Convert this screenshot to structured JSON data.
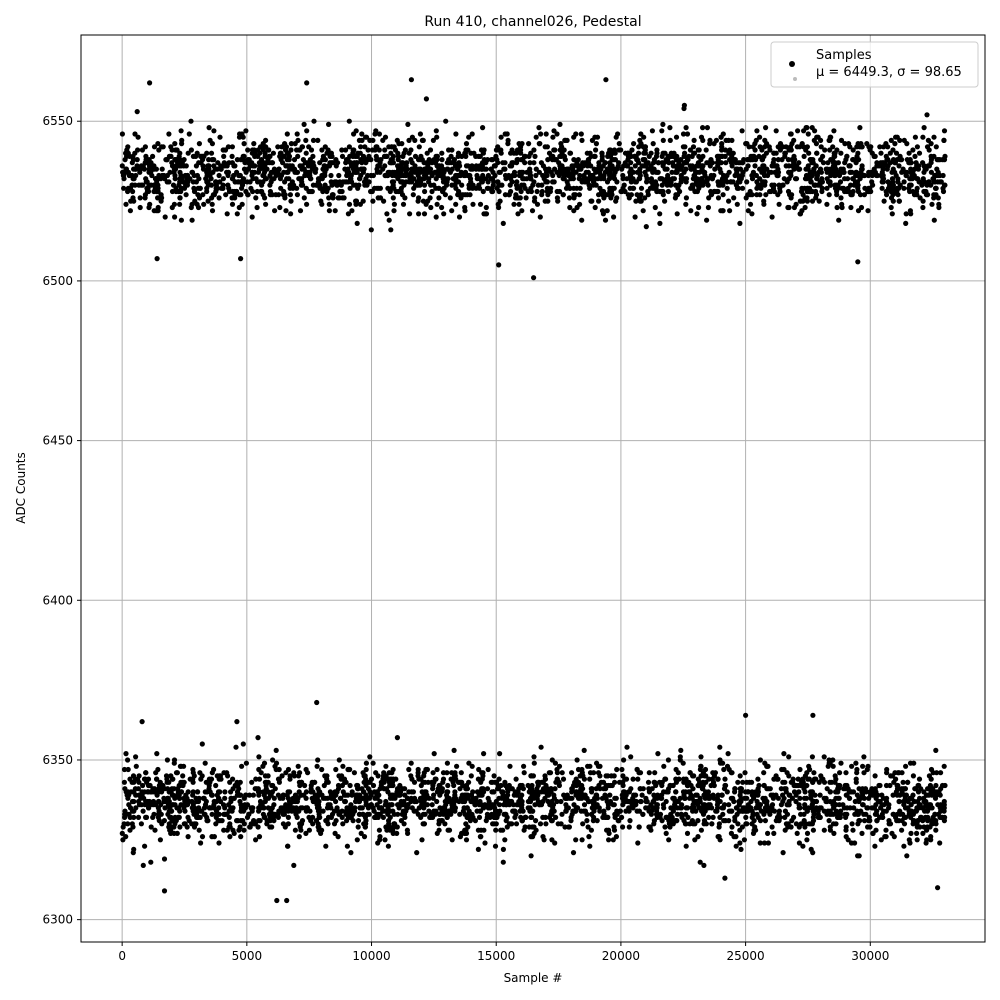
{
  "chart_data": {
    "type": "scatter",
    "title": "Run 410, channel026, Pedestal",
    "xlabel": "Sample #",
    "ylabel": "ADC Counts",
    "xlim": [
      -1650,
      34600
    ],
    "ylim": [
      6293,
      6577
    ],
    "xticks": [
      0,
      5000,
      10000,
      15000,
      20000,
      25000,
      30000
    ],
    "yticks": [
      6300,
      6350,
      6400,
      6450,
      6500,
      6550
    ],
    "xtick_labels": [
      "0",
      "5000",
      "10000",
      "15000",
      "20000",
      "25000",
      "30000"
    ],
    "ytick_labels": [
      "6300",
      "6350",
      "6400",
      "6450",
      "6500",
      "6550"
    ],
    "grid": true,
    "legend_position": "top-right",
    "marker_color": "#000000",
    "legend": {
      "title": "Samples",
      "entry": "μ = 6449.3, σ = 98.65"
    },
    "series": [
      {
        "name": "Samples",
        "sample_count": 33000,
        "x_range": [
          0,
          33000
        ],
        "bands": [
          {
            "center": 6534,
            "spread_core": 6,
            "range": [
              6501,
              6563
            ]
          },
          {
            "center": 6337,
            "spread_core": 6,
            "range": [
              6306,
              6368
            ]
          }
        ],
        "outliers": [
          {
            "x": 16500,
            "y": 6501
          },
          {
            "x": 15100,
            "y": 6505
          },
          {
            "x": 4750,
            "y": 6507
          },
          {
            "x": 1400,
            "y": 6507
          },
          {
            "x": 29500,
            "y": 6506
          },
          {
            "x": 11600,
            "y": 6563
          },
          {
            "x": 19400,
            "y": 6563
          },
          {
            "x": 1100,
            "y": 6562
          },
          {
            "x": 7400,
            "y": 6562
          },
          {
            "x": 7800,
            "y": 6368
          },
          {
            "x": 6200,
            "y": 6306
          },
          {
            "x": 6600,
            "y": 6306
          },
          {
            "x": 1700,
            "y": 6309
          },
          {
            "x": 32700,
            "y": 6310
          },
          {
            "x": 25000,
            "y": 6364
          },
          {
            "x": 27700,
            "y": 6364
          },
          {
            "x": 800,
            "y": 6362
          },
          {
            "x": 4600,
            "y": 6362
          }
        ]
      }
    ]
  }
}
